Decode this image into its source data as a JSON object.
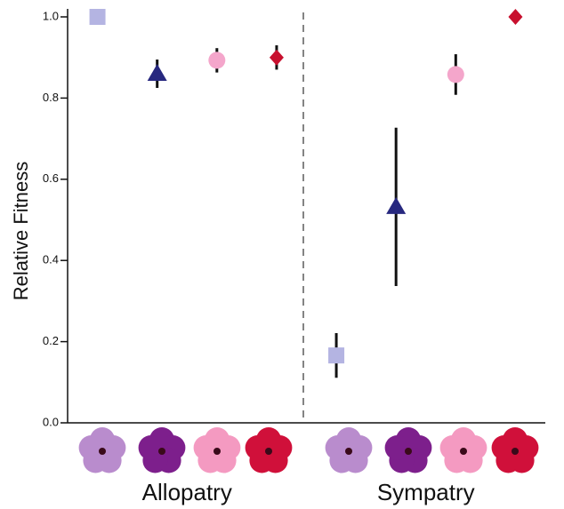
{
  "chart_data": {
    "type": "scatter",
    "y_label": "Relative Fitness",
    "categories": [
      "Allopatry",
      "Sympatry"
    ],
    "ylim": [
      0,
      1.04
    ],
    "yticks": [
      {
        "value": 0,
        "label": "0.0"
      },
      0.2,
      0.4,
      0.6,
      0.8,
      {
        "value": 1,
        "label": "1.0"
      }
    ],
    "series": [
      {
        "color": "#b4b4e2",
        "marker": "square",
        "values": [
          1.0,
          0.166
        ],
        "errors": [
          null,
          0.055
        ]
      },
      {
        "color": "#27287f",
        "marker": "triangle",
        "values": [
          0.86,
          0.532
        ],
        "errors": [
          0.035,
          0.195
        ]
      },
      {
        "color": "#f4a6cb",
        "marker": "circle",
        "values": [
          0.893,
          0.858
        ],
        "errors": [
          0.03,
          0.05
        ]
      },
      {
        "color": "#c8102e",
        "marker": "diamond",
        "values": [
          0.9,
          1.0
        ],
        "errors": [
          0.03,
          null
        ]
      }
    ]
  }
}
